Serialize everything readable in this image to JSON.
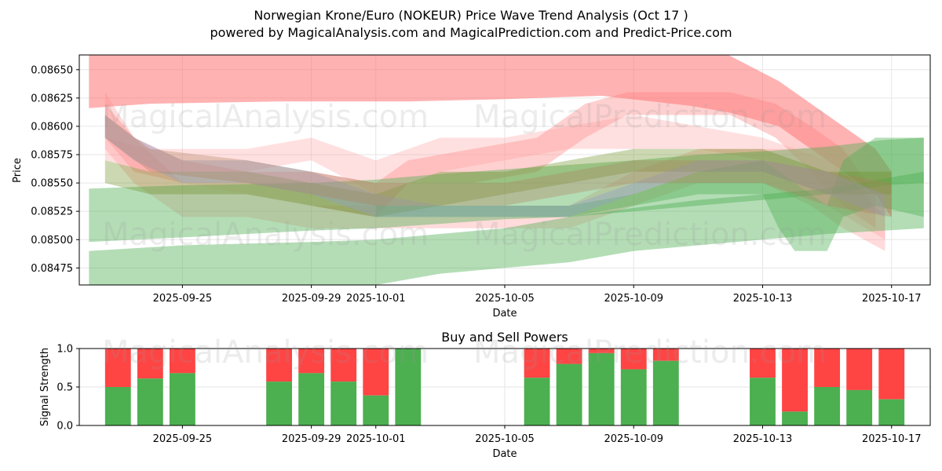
{
  "header": {
    "title_line1": "Norwegian Krone/Euro (NOKEUR) Price Wave Trend Analysis (Oct 17 )",
    "title_line2": "powered by MagicalAnalysis.com and MagicalPrediction.com and Predict-Price.com"
  },
  "watermarks": [
    "MagicalAnalysis.com",
    "MagicalPrediction.com"
  ],
  "chart_data": [
    {
      "type": "area",
      "title": "",
      "xlabel": "Date",
      "ylabel": "Price",
      "ylim": [
        0.0846,
        0.08663
      ],
      "yticks": [
        0.08475,
        0.085,
        0.08525,
        0.0855,
        0.08575,
        0.086,
        0.08625,
        0.0865
      ],
      "ytick_labels": [
        "0.08475",
        "0.08500",
        "0.08525",
        "0.08550",
        "0.08575",
        "0.08600",
        "0.08625",
        "0.08650"
      ],
      "xlim_day": [
        -3.2,
        23.2
      ],
      "x_ticks": [
        {
          "day": 0,
          "label": "2025-09-25"
        },
        {
          "day": 4,
          "label": "2025-09-29"
        },
        {
          "day": 6,
          "label": "2025-10-01"
        },
        {
          "day": 10,
          "label": "2025-10-05"
        },
        {
          "day": 14,
          "label": "2025-10-09"
        },
        {
          "day": 18,
          "label": "2025-10-13"
        },
        {
          "day": 22,
          "label": "2025-10-17"
        }
      ],
      "grid": true,
      "bands": [
        {
          "color": "#ff6666",
          "opacity": 0.5,
          "points": [
            [
              -2.9,
              0.08616,
              0.0867
            ],
            [
              -1,
              0.0862,
              0.0868
            ],
            [
              3,
              0.08622,
              0.0868
            ],
            [
              7,
              0.08622,
              0.0868
            ],
            [
              10,
              0.08624,
              0.0868
            ],
            [
              13,
              0.08627,
              0.08678
            ],
            [
              15.8,
              0.08618,
              0.08675
            ],
            [
              17,
              0.08612,
              0.08662
            ],
            [
              18.5,
              0.086,
              0.0864
            ],
            [
              19.5,
              0.0858,
              0.0862
            ],
            [
              20.5,
              0.0856,
              0.086
            ],
            [
              21.5,
              0.0854,
              0.0858
            ],
            [
              22,
              0.0852,
              0.0856
            ]
          ]
        },
        {
          "color": "#ff7777",
          "opacity": 0.35,
          "points": [
            [
              -2.4,
              0.0859,
              0.0862
            ],
            [
              -1.5,
              0.0856,
              0.0859
            ],
            [
              0,
              0.0855,
              0.0857
            ],
            [
              2,
              0.0854,
              0.0856
            ],
            [
              4,
              0.0853,
              0.0856
            ],
            [
              6,
              0.0852,
              0.0855
            ],
            [
              7,
              0.0855,
              0.0857
            ],
            [
              9,
              0.0855,
              0.0858
            ],
            [
              11,
              0.0856,
              0.0859
            ],
            [
              12.5,
              0.0859,
              0.0862
            ],
            [
              13.8,
              0.0861,
              0.0863
            ],
            [
              15,
              0.0861,
              0.0863
            ],
            [
              17,
              0.0861,
              0.0863
            ],
            [
              18.4,
              0.0859,
              0.0862
            ],
            [
              19.5,
              0.0856,
              0.086
            ],
            [
              20.5,
              0.0853,
              0.0858
            ],
            [
              21.5,
              0.0851,
              0.0854
            ]
          ]
        },
        {
          "color": "#ff8888",
          "opacity": 0.3,
          "points": [
            [
              -2.4,
              0.0858,
              0.0863
            ],
            [
              -1.5,
              0.0855,
              0.0859
            ],
            [
              0,
              0.0852,
              0.0855
            ],
            [
              2,
              0.0852,
              0.0854
            ],
            [
              4,
              0.0851,
              0.0853
            ],
            [
              6,
              0.0851,
              0.0853
            ],
            [
              8,
              0.0851,
              0.0853
            ],
            [
              10,
              0.0851,
              0.0853
            ],
            [
              12,
              0.0851,
              0.0853
            ],
            [
              14,
              0.0853,
              0.0856
            ],
            [
              16,
              0.0855,
              0.0858
            ],
            [
              18,
              0.0855,
              0.0858
            ],
            [
              19.5,
              0.0853,
              0.0858
            ],
            [
              20.5,
              0.0851,
              0.0856
            ],
            [
              21.8,
              0.0849,
              0.0852
            ]
          ]
        },
        {
          "color": "#ff9999",
          "opacity": 0.3,
          "points": [
            [
              -2.4,
              0.0857,
              0.0859
            ],
            [
              -1,
              0.0856,
              0.0858
            ],
            [
              2,
              0.0856,
              0.0858
            ],
            [
              4,
              0.0857,
              0.0859
            ],
            [
              6,
              0.0854,
              0.0857
            ],
            [
              8,
              0.0856,
              0.0859
            ],
            [
              10,
              0.0857,
              0.0859
            ],
            [
              12,
              0.0858,
              0.086
            ],
            [
              14,
              0.0858,
              0.0861
            ],
            [
              16,
              0.0858,
              0.086
            ],
            [
              18,
              0.0857,
              0.0859
            ],
            [
              20,
              0.0853,
              0.0857
            ],
            [
              21.8,
              0.085,
              0.0853
            ]
          ]
        },
        {
          "color": "#4caf50",
          "opacity": 0.42,
          "points": [
            [
              -2.9,
              0.08498,
              0.08545
            ],
            [
              0,
              0.08502,
              0.08548
            ],
            [
              4,
              0.08508,
              0.0855
            ],
            [
              6,
              0.0851,
              0.08553
            ],
            [
              8,
              0.08514,
              0.08558
            ],
            [
              10,
              0.08518,
              0.08562
            ],
            [
              12,
              0.0852,
              0.08566
            ],
            [
              14,
              0.08525,
              0.0857
            ],
            [
              16,
              0.0853,
              0.08575
            ],
            [
              18,
              0.08535,
              0.08578
            ],
            [
              20,
              0.0854,
              0.08582
            ],
            [
              21.8,
              0.08548,
              0.08588
            ],
            [
              23,
              0.0855,
              0.0859
            ]
          ]
        },
        {
          "color": "#4caf50",
          "opacity": 0.42,
          "points": [
            [
              -2.9,
              0.0846,
              0.0849
            ],
            [
              0,
              0.0846,
              0.08495
            ],
            [
              4,
              0.0846,
              0.08498
            ],
            [
              6,
              0.0846,
              0.085
            ],
            [
              8,
              0.0847,
              0.08505
            ],
            [
              10,
              0.08475,
              0.0851
            ],
            [
              12,
              0.0848,
              0.0852
            ],
            [
              14,
              0.0849,
              0.08528
            ],
            [
              16,
              0.08495,
              0.08535
            ],
            [
              18,
              0.085,
              0.0854
            ],
            [
              20,
              0.08505,
              0.08545
            ],
            [
              23,
              0.0851,
              0.0856
            ]
          ]
        },
        {
          "color": "#4caf50",
          "opacity": 0.4,
          "points": [
            [
              6,
              0.0852,
              0.0853
            ],
            [
              8,
              0.0852,
              0.0853
            ],
            [
              10,
              0.0852,
              0.0853
            ],
            [
              12,
              0.0852,
              0.0853
            ],
            [
              14,
              0.0853,
              0.0854
            ],
            [
              16,
              0.0854,
              0.0856
            ],
            [
              18,
              0.0854,
              0.0857
            ],
            [
              18.5,
              0.0851,
              0.0856
            ],
            [
              19,
              0.0849,
              0.0855
            ],
            [
              20,
              0.0849,
              0.0853
            ],
            [
              20.5,
              0.0852,
              0.0857
            ],
            [
              21.5,
              0.0853,
              0.0859
            ],
            [
              23,
              0.0852,
              0.0859
            ]
          ]
        },
        {
          "color": "#6b8e23",
          "opacity": 0.35,
          "points": [
            [
              -2.4,
              0.0855,
              0.0857
            ],
            [
              -1,
              0.0854,
              0.0856
            ],
            [
              2,
              0.0854,
              0.0856
            ],
            [
              4,
              0.0853,
              0.0855
            ],
            [
              6,
              0.0852,
              0.0854
            ],
            [
              8,
              0.0853,
              0.0856
            ],
            [
              10,
              0.0854,
              0.0856
            ],
            [
              12,
              0.0855,
              0.0857
            ],
            [
              14,
              0.0856,
              0.0858
            ],
            [
              16,
              0.0856,
              0.0858
            ],
            [
              18,
              0.0856,
              0.0858
            ],
            [
              20,
              0.0854,
              0.0856
            ],
            [
              22,
              0.0854,
              0.0856
            ]
          ]
        },
        {
          "color": "#8fa0c8",
          "opacity": 0.4,
          "points": [
            [
              -2.4,
              0.0859,
              0.0861
            ],
            [
              -1.5,
              0.0857,
              0.0859
            ],
            [
              0,
              0.0855,
              0.0857
            ],
            [
              2,
              0.0855,
              0.0857
            ],
            [
              4,
              0.0854,
              0.0856
            ],
            [
              6,
              0.0852,
              0.0854
            ],
            [
              8,
              0.0852,
              0.0853
            ],
            [
              10,
              0.0852,
              0.0853
            ],
            [
              12,
              0.0852,
              0.0853
            ],
            [
              14,
              0.0854,
              0.0855
            ],
            [
              16,
              0.0856,
              0.0857
            ],
            [
              18,
              0.0856,
              0.0857
            ],
            [
              20,
              0.0854,
              0.0856
            ],
            [
              21.8,
              0.0852,
              0.0854
            ]
          ]
        },
        {
          "color": "#b08060",
          "opacity": 0.35,
          "points": [
            [
              -2.4,
              0.0859,
              0.0861
            ],
            [
              -1,
              0.0856,
              0.0858
            ],
            [
              2,
              0.0855,
              0.0857
            ],
            [
              4,
              0.0854,
              0.0856
            ],
            [
              6,
              0.0853,
              0.0855
            ],
            [
              8,
              0.0853,
              0.0855
            ],
            [
              10,
              0.0853,
              0.0855
            ],
            [
              12,
              0.0854,
              0.0856
            ],
            [
              14,
              0.0855,
              0.0857
            ],
            [
              16,
              0.0855,
              0.0857
            ],
            [
              18,
              0.0855,
              0.0857
            ],
            [
              20,
              0.0853,
              0.0856
            ],
            [
              22,
              0.0852,
              0.0855
            ]
          ]
        }
      ]
    },
    {
      "type": "bar",
      "title": "Buy and Sell Powers",
      "xlabel": "Date",
      "ylabel": "Signal Strength",
      "ylim": [
        0,
        1
      ],
      "yticks": [
        0,
        0.5,
        1
      ],
      "ytick_labels": [
        "0.0",
        "0.5",
        "1.0"
      ],
      "xlim_day": [
        -3.2,
        23.2
      ],
      "x_ticks": [
        {
          "day": 0,
          "label": "2025-09-25"
        },
        {
          "day": 4,
          "label": "2025-09-29"
        },
        {
          "day": 6,
          "label": "2025-10-01"
        },
        {
          "day": 10,
          "label": "2025-10-05"
        },
        {
          "day": 14,
          "label": "2025-10-09"
        },
        {
          "day": 18,
          "label": "2025-10-13"
        },
        {
          "day": 22,
          "label": "2025-10-17"
        }
      ],
      "series": [
        {
          "name": "Buy",
          "color": "#4caf50"
        },
        {
          "name": "Sell",
          "color": "#ff4444"
        }
      ],
      "bars": [
        {
          "day": -2,
          "buy": 0.5
        },
        {
          "day": -1,
          "buy": 0.61
        },
        {
          "day": 0,
          "buy": 0.68
        },
        {
          "day": 3,
          "buy": 0.57
        },
        {
          "day": 4,
          "buy": 0.68
        },
        {
          "day": 5,
          "buy": 0.57
        },
        {
          "day": 6,
          "buy": 0.39
        },
        {
          "day": 7,
          "buy": 1.0
        },
        {
          "day": 11,
          "buy": 0.62
        },
        {
          "day": 12,
          "buy": 0.8
        },
        {
          "day": 13,
          "buy": 0.94
        },
        {
          "day": 14,
          "buy": 0.73
        },
        {
          "day": 15,
          "buy": 0.84
        },
        {
          "day": 18,
          "buy": 0.62
        },
        {
          "day": 19,
          "buy": 0.18
        },
        {
          "day": 20,
          "buy": 0.5
        },
        {
          "day": 21,
          "buy": 0.46
        },
        {
          "day": 22,
          "buy": 0.34
        }
      ]
    }
  ]
}
